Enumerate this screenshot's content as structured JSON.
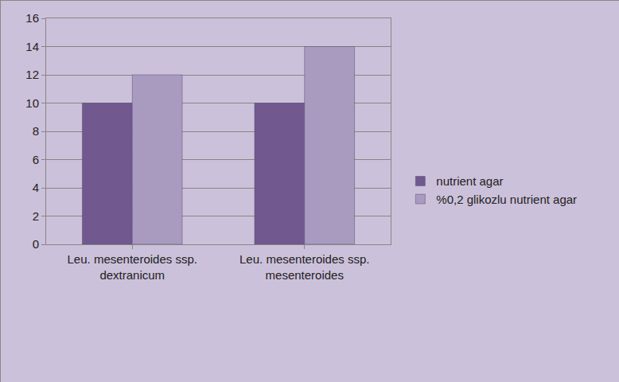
{
  "chart_data": {
    "type": "bar",
    "categories": [
      "Leu. mesenteroides ssp. dextranicum",
      "Leu. mesenteroides ssp. mesenteroides"
    ],
    "series": [
      {
        "name": "nutrient agar",
        "color": "#71588f",
        "values": [
          10,
          10
        ]
      },
      {
        "name": "%0,2 glikozlu nutrient agar",
        "color": "#a99bc0",
        "values": [
          12,
          14
        ]
      }
    ],
    "ylim": [
      0,
      16
    ],
    "yticks": [
      0,
      2,
      4,
      6,
      8,
      10,
      12,
      14,
      16
    ],
    "grid": true,
    "legend": "right"
  }
}
